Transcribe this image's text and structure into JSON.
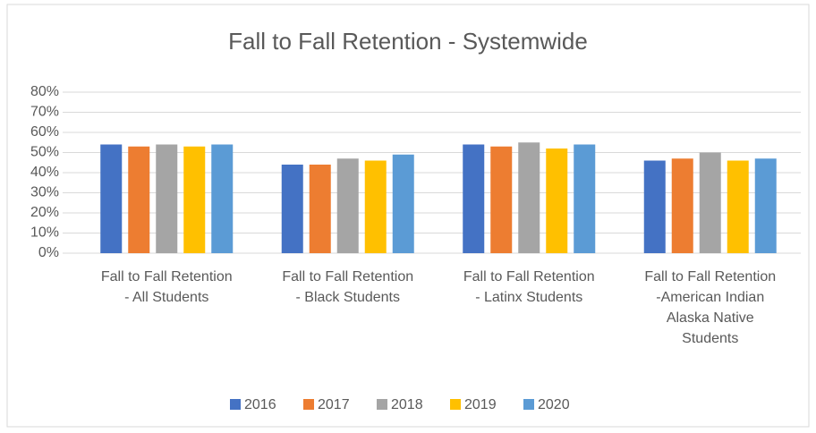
{
  "chart_data": {
    "type": "bar",
    "title": "Fall to Fall Retention - Systemwide",
    "categories": [
      "Fall to Fall Retention\n- All Students",
      "Fall to Fall Retention\n- Black Students",
      "Fall to Fall Retention\n- Latinx Students",
      "Fall to Fall Retention\n-American Indian\nAlaska Native\nStudents"
    ],
    "series": [
      {
        "name": "2016",
        "color": "#4472c4",
        "values": [
          54,
          44,
          54,
          46
        ]
      },
      {
        "name": "2017",
        "color": "#ed7d31",
        "values": [
          53,
          44,
          53,
          47
        ]
      },
      {
        "name": "2018",
        "color": "#a5a5a5",
        "values": [
          54,
          47,
          55,
          50
        ]
      },
      {
        "name": "2019",
        "color": "#ffc000",
        "values": [
          53,
          46,
          52,
          46
        ]
      },
      {
        "name": "2020",
        "color": "#5b9bd5",
        "values": [
          54,
          49,
          54,
          47
        ]
      }
    ],
    "ylim": [
      0,
      80
    ],
    "yticks": [
      {
        "value": 0,
        "label": "0%"
      },
      {
        "value": 10,
        "label": "10%"
      },
      {
        "value": 20,
        "label": "20%"
      },
      {
        "value": 30,
        "label": "30%"
      },
      {
        "value": 40,
        "label": "40%"
      },
      {
        "value": 50,
        "label": "50%"
      },
      {
        "value": 60,
        "label": "60%"
      },
      {
        "value": 70,
        "label": "70%"
      },
      {
        "value": 80,
        "label": "80%"
      }
    ],
    "grid": true,
    "legend": "bottom"
  }
}
